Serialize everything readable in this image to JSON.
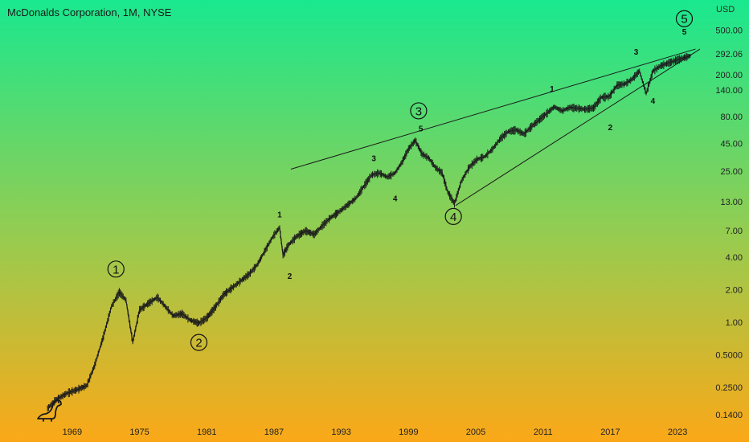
{
  "header": {
    "title": "McDonalds Corporation, 1M, NYSE",
    "currency": "USD"
  },
  "colors": {
    "bg_top": "#19e88f",
    "bg_mid": "#9acb4e",
    "bg_bottom": "#fba818",
    "price": "#1c1c1c",
    "annotation": "#111111"
  },
  "chart_data": {
    "type": "line",
    "scale": "log",
    "x_ticks": [
      "1969",
      "1975",
      "1981",
      "1987",
      "1993",
      "1999",
      "2005",
      "2011",
      "2017",
      "2023"
    ],
    "y_ticks": [
      "500.00",
      "292.06",
      "200.00",
      "140.00",
      "80.00",
      "45.00",
      "25.00",
      "13.00",
      "7.00",
      "4.00",
      "2.00",
      "1.00",
      "0.5000",
      "0.2500",
      "0.1400"
    ],
    "ylim": [
      0.11,
      700
    ],
    "xlim": [
      1966.5,
      2025.5
    ],
    "last_price": "292.06",
    "series": [
      {
        "values": [
          [
            1966.8,
            0.16
          ],
          [
            1967.5,
            0.19
          ],
          [
            1968.5,
            0.22
          ],
          [
            1969.5,
            0.24
          ],
          [
            1970.3,
            0.26
          ],
          [
            1971.0,
            0.4
          ],
          [
            1971.8,
            0.75
          ],
          [
            1972.5,
            1.4
          ],
          [
            1973.2,
            1.9
          ],
          [
            1973.8,
            1.6
          ],
          [
            1974.4,
            0.65
          ],
          [
            1975.0,
            1.3
          ],
          [
            1975.8,
            1.5
          ],
          [
            1976.6,
            1.7
          ],
          [
            1977.3,
            1.4
          ],
          [
            1978.0,
            1.15
          ],
          [
            1978.8,
            1.2
          ],
          [
            1979.5,
            1.05
          ],
          [
            1980.3,
            0.98
          ],
          [
            1981.0,
            1.1
          ],
          [
            1981.8,
            1.4
          ],
          [
            1982.5,
            1.8
          ],
          [
            1983.3,
            2.1
          ],
          [
            1984.0,
            2.4
          ],
          [
            1984.8,
            2.8
          ],
          [
            1985.5,
            3.4
          ],
          [
            1986.3,
            4.8
          ],
          [
            1986.9,
            6.2
          ],
          [
            1987.5,
            7.5
          ],
          [
            1987.8,
            4.2
          ],
          [
            1988.3,
            5.2
          ],
          [
            1989.0,
            6.2
          ],
          [
            1989.8,
            7.0
          ],
          [
            1990.6,
            6.5
          ],
          [
            1991.3,
            7.8
          ],
          [
            1992.0,
            9.2
          ],
          [
            1992.8,
            10.5
          ],
          [
            1993.5,
            12.0
          ],
          [
            1994.3,
            14.0
          ],
          [
            1995.0,
            18.0
          ],
          [
            1995.7,
            23.0
          ],
          [
            1996.4,
            24.0
          ],
          [
            1997.1,
            22.0
          ],
          [
            1997.8,
            24.0
          ],
          [
            1998.4,
            30.0
          ],
          [
            1999.0,
            40.0
          ],
          [
            1999.6,
            48.0
          ],
          [
            2000.2,
            36.0
          ],
          [
            2000.8,
            33.0
          ],
          [
            2001.4,
            27.0
          ],
          [
            2002.0,
            24.0
          ],
          [
            2002.5,
            16.0
          ],
          [
            2003.1,
            12.5
          ],
          [
            2003.7,
            20.0
          ],
          [
            2004.4,
            27.0
          ],
          [
            2005.1,
            32.0
          ],
          [
            2005.8,
            34.0
          ],
          [
            2006.5,
            40.0
          ],
          [
            2007.2,
            50.0
          ],
          [
            2007.9,
            58.0
          ],
          [
            2008.6,
            60.0
          ],
          [
            2009.3,
            55.0
          ],
          [
            2010.0,
            65.0
          ],
          [
            2010.7,
            75.0
          ],
          [
            2011.3,
            85.0
          ],
          [
            2012.0,
            98.0
          ],
          [
            2012.7,
            90.0
          ],
          [
            2013.4,
            97.0
          ],
          [
            2014.1,
            95.0
          ],
          [
            2014.8,
            93.0
          ],
          [
            2015.5,
            96.0
          ],
          [
            2016.2,
            120.0
          ],
          [
            2016.9,
            122.0
          ],
          [
            2017.6,
            155.0
          ],
          [
            2018.3,
            160.0
          ],
          [
            2018.9,
            175.0
          ],
          [
            2019.6,
            210.0
          ],
          [
            2020.2,
            130.0
          ],
          [
            2020.8,
            210.0
          ],
          [
            2021.5,
            235.0
          ],
          [
            2022.2,
            250.0
          ],
          [
            2022.9,
            265.0
          ],
          [
            2023.6,
            280.0
          ],
          [
            2024.2,
            292.06
          ]
        ]
      }
    ],
    "annotations": {
      "circled": [
        {
          "label": "1",
          "x": 1972.9,
          "y": 3.1
        },
        {
          "label": "2",
          "x": 1980.3,
          "y": 0.65
        },
        {
          "label": "3",
          "x": 1999.9,
          "y": 90
        },
        {
          "label": "4",
          "x": 2003.0,
          "y": 9.5
        },
        {
          "label": "5",
          "x": 2023.6,
          "y": 640
        }
      ],
      "minor": [
        {
          "label": "1",
          "x": 1987.5,
          "y": 10.0
        },
        {
          "label": "2",
          "x": 1988.4,
          "y": 2.7
        },
        {
          "label": "3",
          "x": 1995.9,
          "y": 33.0
        },
        {
          "label": "4",
          "x": 1997.8,
          "y": 14.0
        },
        {
          "label": "5",
          "x": 2000.1,
          "y": 62.0
        },
        {
          "label": "1",
          "x": 2011.8,
          "y": 145
        },
        {
          "label": "2",
          "x": 2017.0,
          "y": 64
        },
        {
          "label": "3",
          "x": 2019.3,
          "y": 318
        },
        {
          "label": "4",
          "x": 2020.8,
          "y": 112
        },
        {
          "label": "5",
          "x": 2023.6,
          "y": 490
        }
      ]
    },
    "trendlines": [
      {
        "from": [
          1988.5,
          26.0
        ],
        "to": [
          2024.6,
          335
        ]
      },
      {
        "from": [
          2003.2,
          12.0
        ],
        "to": [
          2025.0,
          335
        ]
      }
    ]
  }
}
